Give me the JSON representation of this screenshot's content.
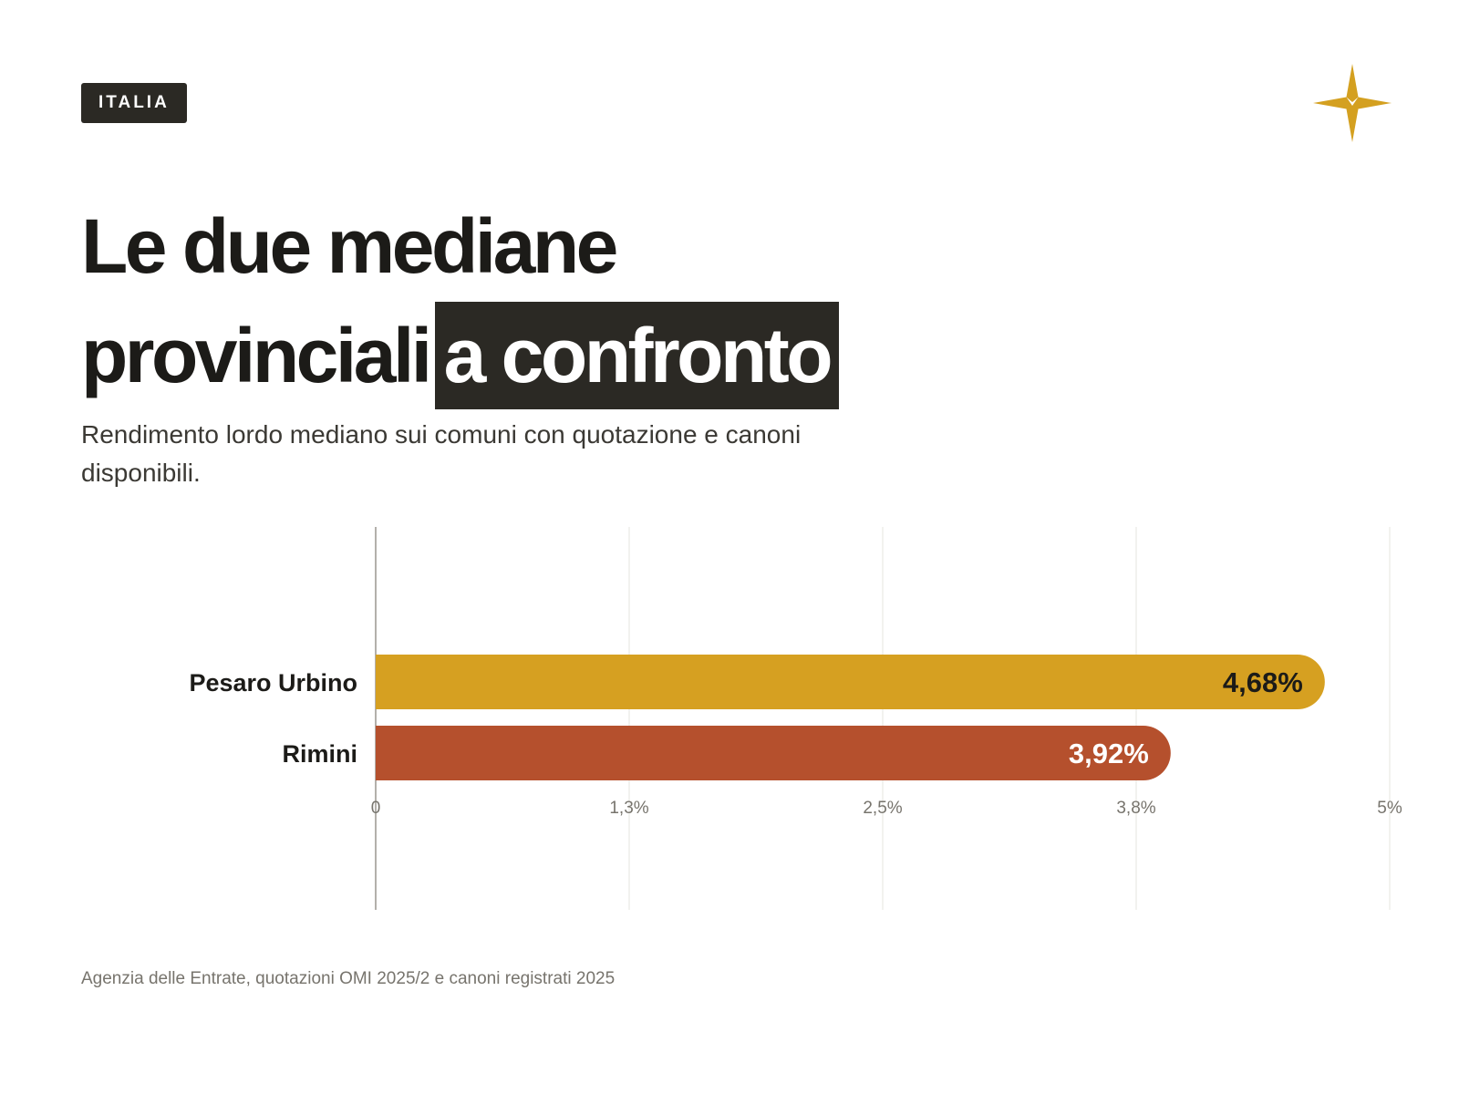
{
  "header": {
    "badge": "ITALIA",
    "title_line1": "Le due mediane",
    "title_line2": "provinciali",
    "title_highlight": "a confronto",
    "subtitle": "Rendimento lordo mediano sui comuni con quotazione e canoni disponibili."
  },
  "logo": {
    "icon": "four-point-star-icon",
    "color": "#d4a020"
  },
  "chart_data": {
    "type": "bar",
    "orientation": "horizontal",
    "categories": [
      "Pesaro Urbino",
      "Rimini"
    ],
    "values": [
      4.68,
      3.92
    ],
    "value_labels": [
      "4,68%",
      "3,92%"
    ],
    "colors": [
      "#d6a021",
      "#b5502d"
    ],
    "label_colors": [
      "#1c1b18",
      "#ffffff"
    ],
    "xlim": [
      0,
      5
    ],
    "ticks": [
      0,
      1.25,
      2.5,
      3.75,
      5
    ],
    "tick_labels": [
      "0",
      "1,3%",
      "2,5%",
      "3,8%",
      "5%"
    ],
    "grid": true
  },
  "footer": {
    "source": "Agenzia delle Entrate, quotazioni OMI 2025/2 e canoni registrati 2025"
  }
}
